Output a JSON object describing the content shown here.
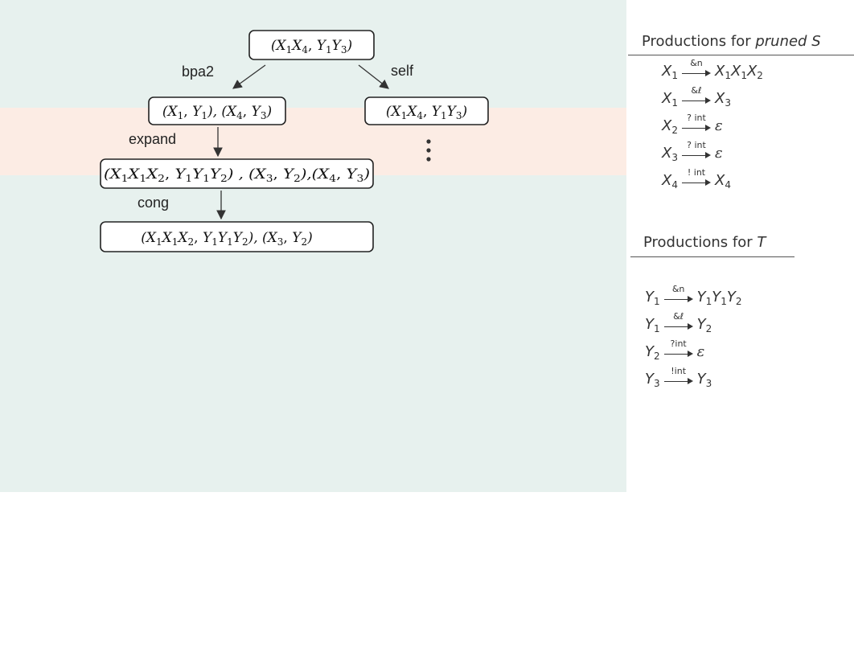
{
  "tree": {
    "root": {
      "pieces": [
        {
          "t": "(X"
        },
        {
          "s": "1"
        },
        {
          "t": "X"
        },
        {
          "s": "4"
        },
        {
          "u": ", "
        },
        {
          "t": "Y"
        },
        {
          "s": "1"
        },
        {
          "t": "Y"
        },
        {
          "s": "3"
        },
        {
          "t": ")"
        }
      ]
    },
    "left_child": {
      "pieces": [
        {
          "t": "(X"
        },
        {
          "s": "1"
        },
        {
          "u": ", "
        },
        {
          "t": "Y"
        },
        {
          "s": "1"
        },
        {
          "t": "), (X"
        },
        {
          "s": "4"
        },
        {
          "u": ", "
        },
        {
          "t": "Y"
        },
        {
          "s": "3"
        },
        {
          "t": ")"
        }
      ]
    },
    "right_child": {
      "pieces": [
        {
          "t": "(X"
        },
        {
          "s": "1"
        },
        {
          "t": "X"
        },
        {
          "s": "4"
        },
        {
          "u": ", "
        },
        {
          "t": "Y"
        },
        {
          "s": "1"
        },
        {
          "t": "Y"
        },
        {
          "s": "3"
        },
        {
          "t": ")"
        }
      ]
    },
    "expanded": {
      "pieces": [
        {
          "t": "(X"
        },
        {
          "s": "1"
        },
        {
          "t": "X"
        },
        {
          "s": "1"
        },
        {
          "t": "X"
        },
        {
          "s": "2"
        },
        {
          "u": ", "
        },
        {
          "t": "Y"
        },
        {
          "s": "1"
        },
        {
          "t": "Y"
        },
        {
          "s": "1"
        },
        {
          "t": "Y"
        },
        {
          "s": "2"
        },
        {
          "t": ") , (X"
        },
        {
          "s": "3"
        },
        {
          "u": ", "
        },
        {
          "t": "Y"
        },
        {
          "s": "2"
        },
        {
          "t": "),(X"
        },
        {
          "s": "4"
        },
        {
          "u": ", "
        },
        {
          "t": "Y"
        },
        {
          "s": "3"
        },
        {
          "t": ")"
        }
      ]
    },
    "congruence": {
      "pieces": [
        {
          "t": "(X"
        },
        {
          "s": "1"
        },
        {
          "t": "X"
        },
        {
          "s": "1"
        },
        {
          "t": "X"
        },
        {
          "s": "2"
        },
        {
          "u": ", "
        },
        {
          "t": "Y"
        },
        {
          "s": "1"
        },
        {
          "t": "Y"
        },
        {
          "s": "1"
        },
        {
          "t": "Y"
        },
        {
          "s": "2"
        },
        {
          "t": "), (X"
        },
        {
          "s": "3"
        },
        {
          "u": ", "
        },
        {
          "t": "Y"
        },
        {
          "s": "2"
        },
        {
          "t": ")"
        }
      ]
    },
    "edge_labels": {
      "bpa2": "bpa2",
      "self": "self",
      "expand": "expand",
      "cong": "cong"
    }
  },
  "productions_s": {
    "heading_prefix": "Productions for ",
    "heading_emph": "pruned S",
    "rules": [
      {
        "lhs": "X",
        "lhs_sub": "1",
        "action": "&n",
        "rhs": [
          {
            "v": "X",
            "s": "1"
          },
          {
            "v": "X",
            "s": "1"
          },
          {
            "v": "X",
            "s": "2"
          }
        ]
      },
      {
        "lhs": "X",
        "lhs_sub": "1",
        "action": "&ℓ",
        "rhs": [
          {
            "v": "X",
            "s": "3"
          }
        ]
      },
      {
        "lhs": "X",
        "lhs_sub": "2",
        "action": "? int",
        "rhs": [
          {
            "eps": "ε"
          }
        ]
      },
      {
        "lhs": "X",
        "lhs_sub": "3",
        "action": "? int",
        "rhs": [
          {
            "eps": "ε"
          }
        ]
      },
      {
        "lhs": "X",
        "lhs_sub": "4",
        "action": "! int",
        "rhs": [
          {
            "v": "X",
            "s": "4"
          }
        ]
      }
    ]
  },
  "productions_t": {
    "heading_prefix": "Productions for ",
    "heading_emph": "T",
    "rules": [
      {
        "lhs": "Y",
        "lhs_sub": "1",
        "action": "&n",
        "rhs": [
          {
            "v": "Y",
            "s": "1"
          },
          {
            "v": "Y",
            "s": "1"
          },
          {
            "v": "Y",
            "s": "2"
          }
        ]
      },
      {
        "lhs": "Y",
        "lhs_sub": "1",
        "action": "&ℓ",
        "rhs": [
          {
            "v": "Y",
            "s": "2"
          }
        ]
      },
      {
        "lhs": "Y",
        "lhs_sub": "2",
        "action": "?int",
        "rhs": [
          {
            "eps": "ε"
          }
        ]
      },
      {
        "lhs": "Y",
        "lhs_sub": "3",
        "action": "!int",
        "rhs": [
          {
            "v": "Y",
            "s": "3"
          }
        ]
      }
    ]
  }
}
